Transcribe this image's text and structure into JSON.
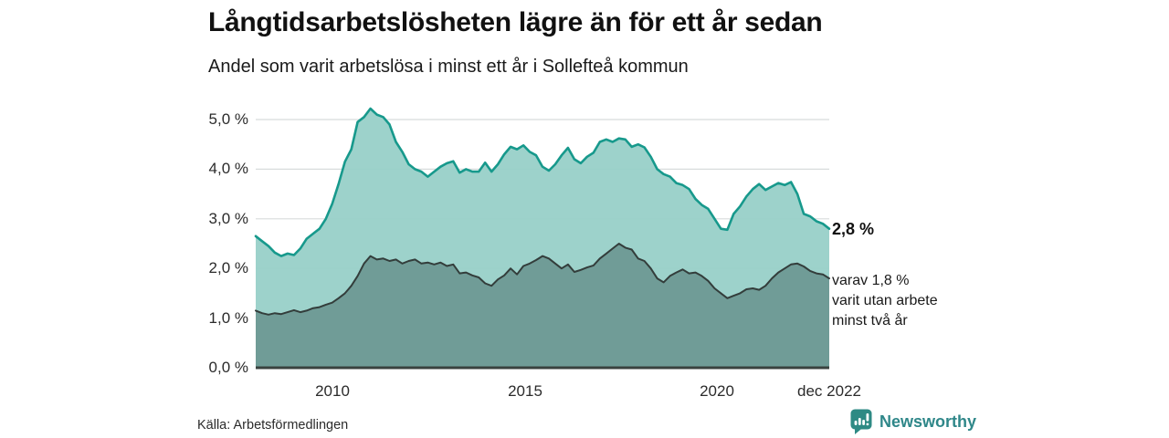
{
  "header": {
    "title": "Långtidsarbetslösheten lägre än för ett år sedan",
    "subtitle": "Andel som varit arbetslösa i minst ett år i Sollefteå kommun"
  },
  "chart_data": {
    "type": "area",
    "title": "Långtidsarbetslösheten lägre än för ett år sedan",
    "subtitle": "Andel som varit arbetslösa i minst ett år i Sollefteå kommun",
    "x_start_year": 2008,
    "x_end_label": "dec 2022",
    "points_per_year": 6,
    "ylim": [
      0,
      5.5
    ],
    "grid": true,
    "y_ticks": [
      {
        "value": 0,
        "label": "0,0 %"
      },
      {
        "value": 1,
        "label": "1,0 %"
      },
      {
        "value": 2,
        "label": "2,0 %"
      },
      {
        "value": 3,
        "label": "3,0 %"
      },
      {
        "value": 4,
        "label": "4,0 %"
      },
      {
        "value": 5,
        "label": "5,0 %"
      }
    ],
    "x_ticks": [
      {
        "year": 2010,
        "label": "2010"
      },
      {
        "year": 2015,
        "label": "2015"
      },
      {
        "year": 2020,
        "label": "2020"
      },
      {
        "year": 2022.92,
        "label": "dec 2022"
      }
    ],
    "series": [
      {
        "name": "Andel som varit arbetslösa i minst ett år",
        "line_color": "#17998c",
        "fill_color": "#98d0c8",
        "fill_opacity": 0.95,
        "line_width": 2.6,
        "end_value": 2.8,
        "values": [
          2.65,
          2.55,
          2.45,
          2.32,
          2.25,
          2.3,
          2.27,
          2.4,
          2.6,
          2.7,
          2.8,
          3.0,
          3.3,
          3.7,
          4.15,
          4.4,
          4.95,
          5.05,
          5.22,
          5.1,
          5.05,
          4.9,
          4.55,
          4.35,
          4.1,
          4.0,
          3.95,
          3.85,
          3.95,
          4.05,
          4.12,
          4.16,
          3.93,
          4.0,
          3.95,
          3.95,
          4.13,
          3.95,
          4.1,
          4.3,
          4.45,
          4.4,
          4.48,
          4.35,
          4.28,
          4.05,
          3.97,
          4.1,
          4.28,
          4.43,
          4.2,
          4.12,
          4.25,
          4.33,
          4.55,
          4.6,
          4.55,
          4.62,
          4.6,
          4.45,
          4.5,
          4.44,
          4.25,
          4.0,
          3.9,
          3.85,
          3.72,
          3.68,
          3.6,
          3.4,
          3.28,
          3.2,
          3.0,
          2.8,
          2.78,
          3.1,
          3.25,
          3.45,
          3.6,
          3.7,
          3.58,
          3.65,
          3.72,
          3.68,
          3.74,
          3.5,
          3.1,
          3.05,
          2.95,
          2.9,
          2.8
        ]
      },
      {
        "name": "varav utan arbete minst två år",
        "line_color": "#333d3b",
        "fill_color": "#6e9a95",
        "fill_opacity": 0.97,
        "line_width": 2,
        "end_value": 1.8,
        "values": [
          1.15,
          1.1,
          1.07,
          1.1,
          1.08,
          1.12,
          1.16,
          1.12,
          1.15,
          1.2,
          1.22,
          1.27,
          1.31,
          1.4,
          1.5,
          1.65,
          1.85,
          2.1,
          2.25,
          2.18,
          2.2,
          2.15,
          2.18,
          2.1,
          2.15,
          2.18,
          2.1,
          2.12,
          2.08,
          2.12,
          2.05,
          2.08,
          1.9,
          1.92,
          1.86,
          1.82,
          1.7,
          1.65,
          1.78,
          1.86,
          2.0,
          1.88,
          2.05,
          2.1,
          2.17,
          2.25,
          2.2,
          2.1,
          2.0,
          2.08,
          1.93,
          1.97,
          2.02,
          2.06,
          2.2,
          2.3,
          2.4,
          2.5,
          2.42,
          2.38,
          2.2,
          2.15,
          2.0,
          1.8,
          1.72,
          1.85,
          1.92,
          1.98,
          1.9,
          1.92,
          1.85,
          1.75,
          1.6,
          1.5,
          1.4,
          1.45,
          1.5,
          1.58,
          1.6,
          1.57,
          1.65,
          1.8,
          1.92,
          2.0,
          2.08,
          2.1,
          2.04,
          1.95,
          1.9,
          1.88,
          1.8
        ]
      }
    ],
    "end_labels": {
      "total_value": "2,8 %",
      "sub_lines": [
        "varav 1,8 %",
        "varit utan arbete",
        "minst två år"
      ]
    },
    "colors": {
      "gridline": "#d8dcdc",
      "axis_line": "#39423f"
    }
  },
  "footer": {
    "source": "Källa: Arbetsförmedlingen",
    "logo_text": "Newsworthy",
    "logo_color": "#2e8a84"
  }
}
